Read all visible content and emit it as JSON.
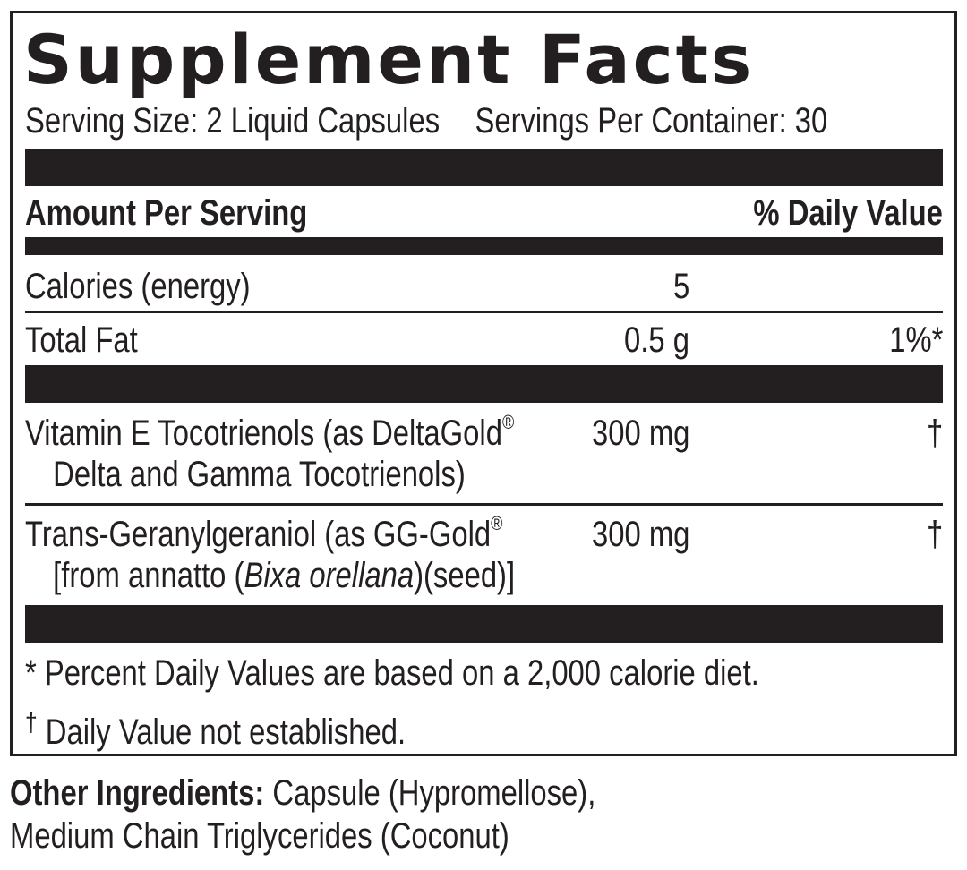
{
  "panel": {
    "title": "Supplement Facts",
    "serving_size": "Serving Size: 2 Liquid Capsules",
    "servings_per_container": "Servings Per Container: 30",
    "header_amount": "Amount Per Serving",
    "header_dv": "% Daily Value",
    "rows": [
      {
        "name": "Calories (energy)",
        "amount": "5",
        "dv": ""
      },
      {
        "name": "Total Fat",
        "amount": "0.5 g",
        "dv": "1%*"
      },
      {
        "name_line1": "Vitamin E Tocotrienols (as DeltaGold",
        "name_reg": "®",
        "name_line2": "Delta and Gamma Tocotrienols)",
        "amount": "300 mg",
        "dv": "†"
      },
      {
        "name_line1": "Trans-Geranylgeraniol (as GG-Gold",
        "name_reg": "®",
        "name_line2_pre": "[from annatto (",
        "name_line2_italic": "Bixa orellana",
        "name_line2_post": ")(seed)]",
        "amount": "300 mg",
        "dv": "†"
      }
    ],
    "footnote_1": "* Percent Daily Values are based on a 2,000 calorie diet.",
    "footnote_2_mark": "†",
    "footnote_2": " Daily Value not established."
  },
  "other_ingredients": {
    "label": "Other Ingredients:",
    "text_line1": " Capsule (Hypromellose),",
    "text_line2": "Medium Chain Triglycerides (Coconut)"
  }
}
